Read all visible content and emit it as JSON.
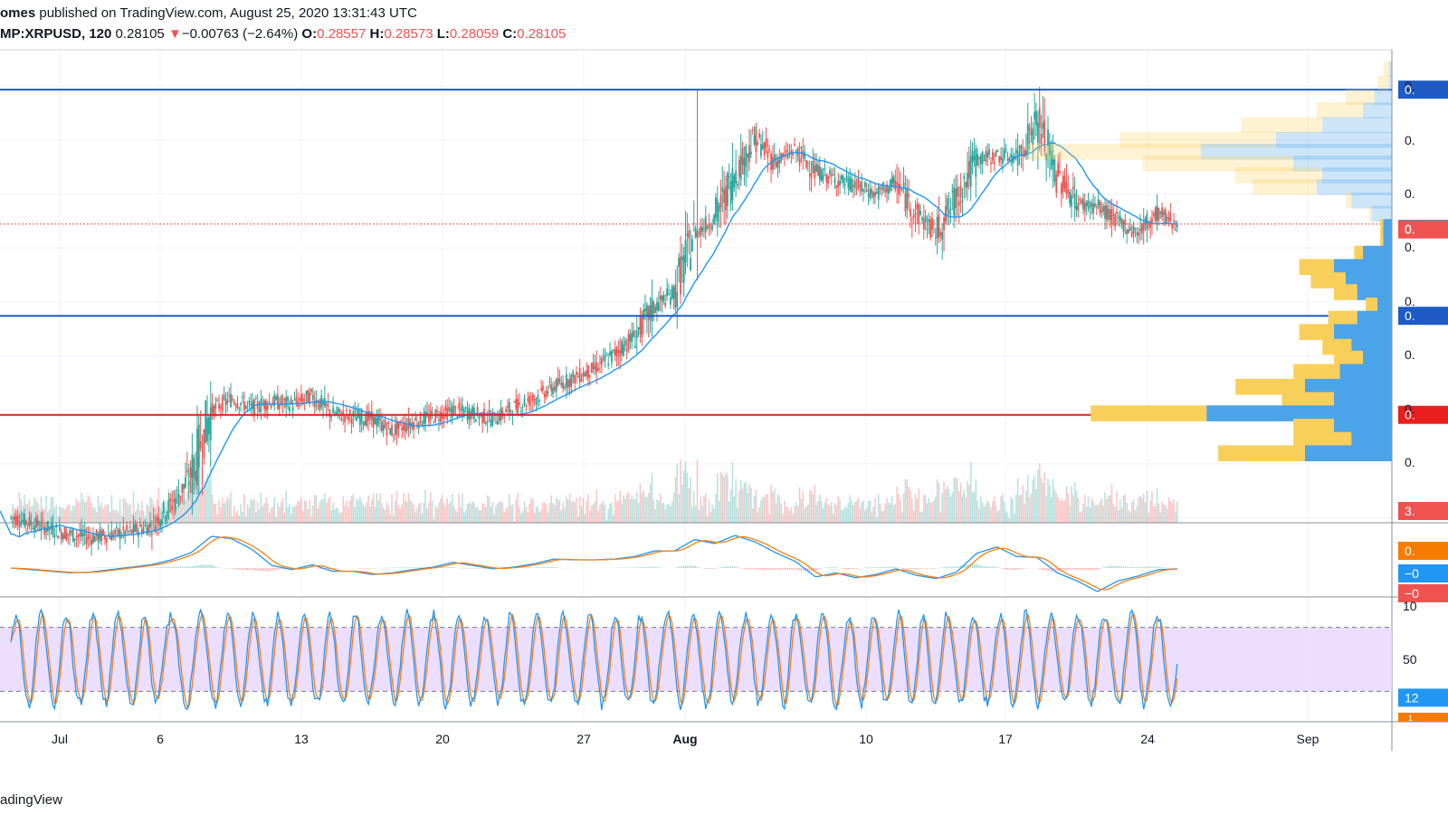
{
  "header": {
    "publisher_suffix": "omes",
    "published_text": "published on TradingView.com, August 25, 2020 13:31:43 UTC",
    "symbol": "MP:XRPUSD, 120",
    "last": "0.28105",
    "change_arrow": "▼",
    "change": "−0.00763 (−2.64%)",
    "o_label": "O:",
    "o_value": "0.28557",
    "h_label": "H:",
    "h_value": "0.28573",
    "l_label": "L:",
    "l_value": "0.28059",
    "c_label": "C:",
    "c_value": "0.28105"
  },
  "footer": {
    "brand": "adingView"
  },
  "colors": {
    "up": "#26a69a",
    "down": "#ef5350",
    "ma": "#2196f3",
    "level_blue": "#1e5bc6",
    "level_red": "#e91e1e",
    "vp_blue": "#4ba3e8",
    "vp_yellow": "#f9cf5c",
    "stoch_k": "#2196f3",
    "stoch_d": "#ff7f0e",
    "stoch_band": "#e7d6ff"
  },
  "chart_data": {
    "type": "candlestick",
    "symbol": "XRPUSD",
    "interval": "120",
    "price_range": [
      0.18,
      0.34
    ],
    "current_price": 0.28105,
    "horizontal_levels": [
      {
        "price": 0.3265,
        "color": "blue"
      },
      {
        "price": 0.25,
        "color": "blue"
      },
      {
        "price": 0.2165,
        "color": "red"
      }
    ],
    "x_ticks": [
      "Jul",
      "6",
      "13",
      "20",
      "27",
      "Aug",
      "10",
      "17",
      "24",
      "Sep"
    ],
    "price_axis_labels": [
      "0.",
      "0.",
      "0.",
      "0.",
      "0.",
      "0.",
      "0.",
      "0.",
      "0.",
      "0.",
      "0.",
      "0.",
      "0.",
      "3."
    ],
    "macd_axis_labels": [
      "0.",
      "−0",
      "−0"
    ],
    "stoch_axis_labels": [
      "10",
      "50",
      "12",
      "1"
    ],
    "daily_closes": [
      [
        "Jun 28",
        0.182
      ],
      [
        "Jun 29",
        0.18
      ],
      [
        "Jun 30",
        0.178
      ],
      [
        "Jul 1",
        0.176
      ],
      [
        "Jul 2",
        0.175
      ],
      [
        "Jul 3",
        0.176
      ],
      [
        "Jul 4",
        0.177
      ],
      [
        "Jul 5",
        0.179
      ],
      [
        "Jul 6",
        0.186
      ],
      [
        "Jul 7",
        0.196
      ],
      [
        "Jul 8",
        0.218
      ],
      [
        "Jul 9",
        0.222
      ],
      [
        "Jul 10",
        0.219
      ],
      [
        "Jul 11",
        0.221
      ],
      [
        "Jul 12",
        0.22
      ],
      [
        "Jul 13",
        0.223
      ],
      [
        "Jul 14",
        0.217
      ],
      [
        "Jul 15",
        0.216
      ],
      [
        "Jul 16",
        0.215
      ],
      [
        "Jul 17",
        0.211
      ],
      [
        "Jul 18",
        0.214
      ],
      [
        "Jul 19",
        0.216
      ],
      [
        "Jul 20",
        0.218
      ],
      [
        "Jul 21",
        0.217
      ],
      [
        "Jul 22",
        0.215
      ],
      [
        "Jul 23",
        0.219
      ],
      [
        "Jul 24",
        0.222
      ],
      [
        "Jul 25",
        0.226
      ],
      [
        "Jul 26",
        0.229
      ],
      [
        "Jul 27",
        0.232
      ],
      [
        "Jul 28",
        0.237
      ],
      [
        "Jul 29",
        0.243
      ],
      [
        "Jul 30",
        0.253
      ],
      [
        "Jul 31",
        0.258
      ],
      [
        "Aug 1",
        0.278
      ],
      [
        "Aug 2",
        0.283
      ],
      [
        "Aug 3",
        0.298
      ],
      [
        "Aug 4",
        0.31
      ],
      [
        "Aug 5",
        0.302
      ],
      [
        "Aug 6",
        0.306
      ],
      [
        "Aug 7",
        0.299
      ],
      [
        "Aug 8",
        0.296
      ],
      [
        "Aug 9",
        0.294
      ],
      [
        "Aug 10",
        0.291
      ],
      [
        "Aug 11",
        0.295
      ],
      [
        "Aug 12",
        0.285
      ],
      [
        "Aug 13",
        0.278
      ],
      [
        "Aug 14",
        0.29
      ],
      [
        "Aug 15",
        0.303
      ],
      [
        "Aug 16",
        0.304
      ],
      [
        "Aug 17",
        0.304
      ],
      [
        "Aug 18",
        0.316
      ],
      [
        "Aug 19",
        0.298
      ],
      [
        "Aug 20",
        0.288
      ],
      [
        "Aug 21",
        0.287
      ],
      [
        "Aug 22",
        0.282
      ],
      [
        "Aug 23",
        0.278
      ],
      [
        "Aug 24",
        0.285
      ],
      [
        "Aug 25",
        0.281
      ]
    ],
    "volume_profile": [
      {
        "price": 0.3335,
        "up": 2,
        "down": 1
      },
      {
        "price": 0.3285,
        "up": 4,
        "down": 1
      },
      {
        "price": 0.324,
        "up": 10,
        "down": 6
      },
      {
        "price": 0.3195,
        "up": 16,
        "down": 10
      },
      {
        "price": 0.3145,
        "up": 28,
        "down": 24
      },
      {
        "price": 0.3095,
        "up": 54,
        "down": 40
      },
      {
        "price": 0.3055,
        "up": 60,
        "down": 66
      },
      {
        "price": 0.3015,
        "up": 52,
        "down": 34
      },
      {
        "price": 0.2975,
        "up": 30,
        "down": 24
      },
      {
        "price": 0.2935,
        "up": 22,
        "down": 26
      },
      {
        "price": 0.289,
        "up": 2,
        "down": 14
      },
      {
        "price": 0.2845,
        "up": 1,
        "down": 7
      },
      {
        "price": 0.28,
        "up": 1,
        "down": 3
      },
      {
        "price": 0.276,
        "up": 1,
        "down": 3
      },
      {
        "price": 0.271,
        "up": 3,
        "down": 10
      },
      {
        "price": 0.2665,
        "up": 12,
        "down": 20
      },
      {
        "price": 0.262,
        "up": 12,
        "down": 16
      },
      {
        "price": 0.258,
        "up": 8,
        "down": 12
      },
      {
        "price": 0.2535,
        "up": 4,
        "down": 5
      },
      {
        "price": 0.249,
        "up": 10,
        "down": 12
      },
      {
        "price": 0.2445,
        "up": 12,
        "down": 20
      },
      {
        "price": 0.2395,
        "up": 10,
        "down": 14
      },
      {
        "price": 0.2355,
        "up": 10,
        "down": 10
      },
      {
        "price": 0.231,
        "up": 16,
        "down": 18
      },
      {
        "price": 0.226,
        "up": 24,
        "down": 30
      },
      {
        "price": 0.2215,
        "up": 18,
        "down": 20
      },
      {
        "price": 0.217,
        "up": 40,
        "down": 64
      },
      {
        "price": 0.2125,
        "up": 14,
        "down": 20
      },
      {
        "price": 0.208,
        "up": 20,
        "down": 14
      },
      {
        "price": 0.2035,
        "up": 30,
        "down": 30
      }
    ],
    "stoch_levels": [
      80,
      20
    ]
  }
}
